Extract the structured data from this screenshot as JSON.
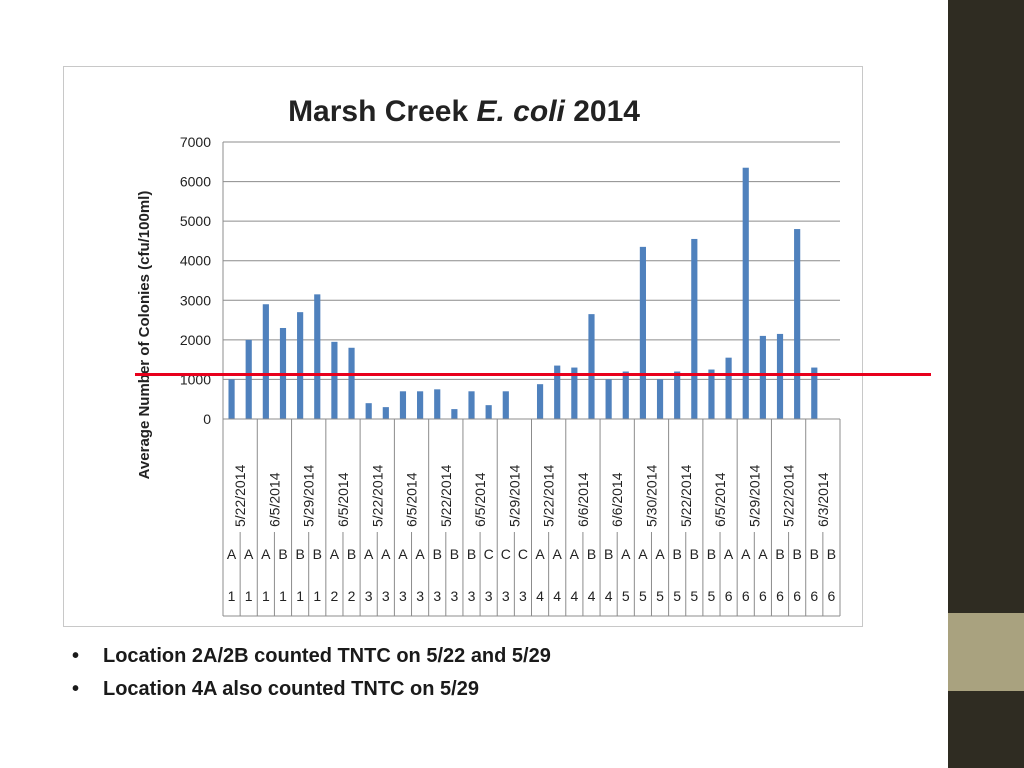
{
  "colors": {
    "bar": "#4f81bd",
    "threshold": "#e8001c",
    "sidebar": "#2f2c22",
    "sidebar_accent": "#a9a27f",
    "grid": "#8c8c8c"
  },
  "bullets": [
    "Location 2A/2B counted TNTC on 5/22 and 5/29",
    "Location 4A also counted TNTC on 5/29"
  ],
  "chart_data": {
    "type": "bar",
    "title": "Marsh Creek ",
    "title_italic": "E. coli",
    "title_suffix": " 2014",
    "ylabel": "Average Number of Colonies (cfu/100ml)",
    "xlabel": "",
    "ylim": [
      0,
      7000
    ],
    "yticks": [
      "0",
      "1000",
      "2000",
      "3000",
      "4000",
      "5000",
      "6000",
      "7000"
    ],
    "grid": true,
    "legend": "none",
    "threshold": 1100,
    "categories": [
      {
        "date": "",
        "site": "A",
        "loc": "1"
      },
      {
        "date": "5/22/2014",
        "site": "A",
        "loc": "1"
      },
      {
        "date": "",
        "site": "A",
        "loc": "1"
      },
      {
        "date": "6/5/2014",
        "site": "B",
        "loc": "1"
      },
      {
        "date": "",
        "site": "B",
        "loc": "1"
      },
      {
        "date": "5/29/2014",
        "site": "B",
        "loc": "1"
      },
      {
        "date": "",
        "site": "A",
        "loc": "2"
      },
      {
        "date": "6/5/2014",
        "site": "B",
        "loc": "2"
      },
      {
        "date": "",
        "site": "A",
        "loc": "3"
      },
      {
        "date": "5/22/2014",
        "site": "A",
        "loc": "3"
      },
      {
        "date": "",
        "site": "A",
        "loc": "3"
      },
      {
        "date": "6/5/2014",
        "site": "A",
        "loc": "3"
      },
      {
        "date": "",
        "site": "B",
        "loc": "3"
      },
      {
        "date": "5/22/2014",
        "site": "B",
        "loc": "3"
      },
      {
        "date": "",
        "site": "B",
        "loc": "3"
      },
      {
        "date": "6/5/2014",
        "site": "C",
        "loc": "3"
      },
      {
        "date": "",
        "site": "C",
        "loc": "3"
      },
      {
        "date": "5/29/2014",
        "site": "C",
        "loc": "3"
      },
      {
        "date": "",
        "site": "A",
        "loc": "4"
      },
      {
        "date": "5/22/2014",
        "site": "A",
        "loc": "4"
      },
      {
        "date": "",
        "site": "A",
        "loc": "4"
      },
      {
        "date": "6/6/2014",
        "site": "B",
        "loc": "4"
      },
      {
        "date": "",
        "site": "B",
        "loc": "4"
      },
      {
        "date": "6/6/2014",
        "site": "A",
        "loc": "5"
      },
      {
        "date": "",
        "site": "A",
        "loc": "5"
      },
      {
        "date": "5/30/2014",
        "site": "A",
        "loc": "5"
      },
      {
        "date": "",
        "site": "B",
        "loc": "5"
      },
      {
        "date": "5/22/2014",
        "site": "B",
        "loc": "5"
      },
      {
        "date": "",
        "site": "B",
        "loc": "5"
      },
      {
        "date": "6/5/2014",
        "site": "A",
        "loc": "6"
      },
      {
        "date": "",
        "site": "A",
        "loc": "6"
      },
      {
        "date": "5/29/2014",
        "site": "A",
        "loc": "6"
      },
      {
        "date": "",
        "site": "B",
        "loc": "6"
      },
      {
        "date": "5/22/2014",
        "site": "B",
        "loc": "6"
      },
      {
        "date": "",
        "site": "B",
        "loc": "6"
      },
      {
        "date": "6/3/2014",
        "site": "B",
        "loc": "6"
      }
    ],
    "values": [
      1000,
      2000,
      2900,
      2300,
      2700,
      3150,
      1950,
      1800,
      400,
      300,
      700,
      700,
      750,
      250,
      700,
      350,
      700,
      0,
      880,
      1350,
      1300,
      2650,
      1000,
      1200,
      4350,
      1000,
      1200,
      4550,
      1250,
      1550,
      6350,
      2100,
      2150,
      4800,
      1300,
      0
    ]
  }
}
